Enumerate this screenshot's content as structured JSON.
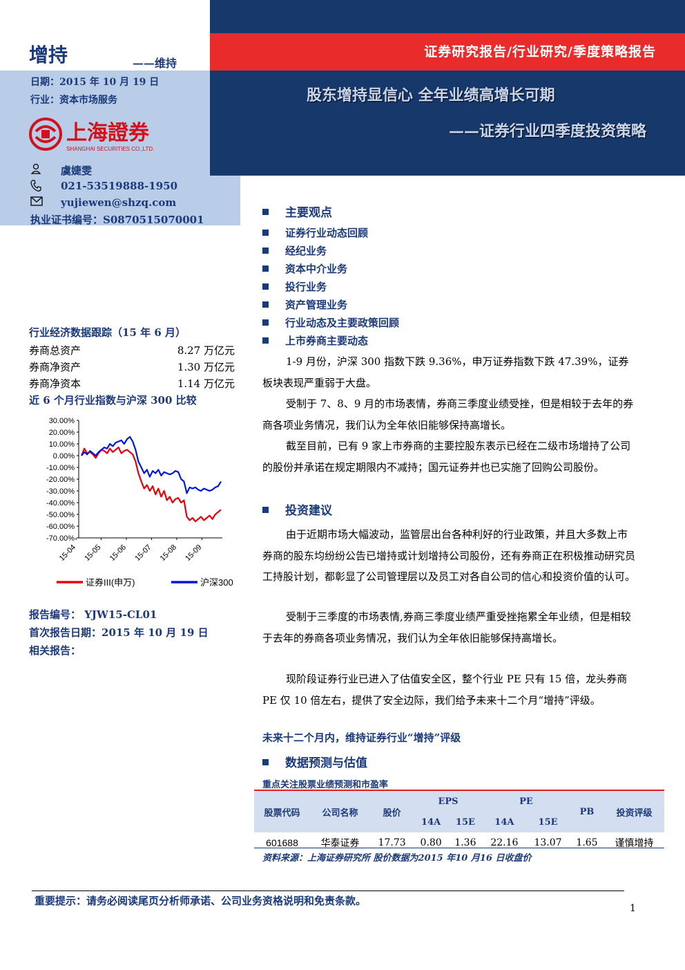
{
  "rating": {
    "main": "增持",
    "previous": "——维持"
  },
  "header": {
    "report_type": "证券研究报告/行业研究/季度策略报告",
    "title": "股东增持显信心 全年业绩高增长可期",
    "subtitle": "——证券行业四季度投资策略"
  },
  "meta": {
    "date": "日期：2015 年 10 月 19 日",
    "industry": "行业：资本市场服务"
  },
  "logo": {
    "cn": "上海證券",
    "en": "SHANGHAI SECURITIES CO.,LTD."
  },
  "analyst": {
    "name": "虞婕雯",
    "phone": "021-53519888-1950",
    "email": "yujiewen@shzq.com",
    "license": "执业证书编号：S0870515070001"
  },
  "outline": {
    "heading": "主要观点",
    "items": [
      "证券行业动态回顾",
      "经纪业务",
      "资本中介业务",
      "投行业务",
      "资产管理业务",
      "行业动态及主要政策回顾",
      "上市券商主要动态"
    ]
  },
  "summary_paragraphs": [
    "1-9 月份，沪深 300 指数下跌 9.36%，申万证券指数下跌 47.39%，证券板块表现严重弱于大盘。",
    "受制于 7、8、9 月的市场表情，券商三季度业绩受挫，但是相较于去年的券商各项业务情况，我们认为全年依旧能够保持高增长。",
    "截至目前，已有 9 家上市券商的主要控股东表示已经在二级市场增持了公司的股份并承诺在规定期限内不减持；国元证券并也已实施了回购公司股份。"
  ],
  "advice": {
    "heading": "投资建议",
    "paragraphs": [
      "由于近期市场大幅波动，监管层出台各种利好的行业政策，并且大多数上市券商的股东均纷纷公告已增持或计划增持公司股份，还有券商正在积极推动研究员工持股计划，都彰显了公司管理层以及员工对各自公司的信心和投资价值的认可。",
      "受制于三季度的市场表情,券商三季度业绩严重受挫拖累全年业绩，但是相较于去年的券商各项业务情况，我们认为全年依旧能够保持高增长。",
      "现阶段证券行业已进入了估值安全区，整个行业 PE 只有 15 倍，龙头券商 PE 仅 10 倍左右，提供了安全边际，我们给予未来十二个月“增持”评级。"
    ],
    "conclusion": "未来十二个月内，维持证券行业“增持”评级"
  },
  "econ": {
    "title": "行业经济数据跟踪（15 年 6 月）",
    "rows": [
      {
        "label": "券商总资产",
        "value": "8.27 万亿元"
      },
      {
        "label": "券商净资产",
        "value": "1.30 万亿元"
      },
      {
        "label": "券商净资本",
        "value": "1.14 万亿元"
      }
    ]
  },
  "chart_data": {
    "type": "line",
    "title": "近 6 个月行业指数与沪深 300 比较",
    "x_ticks": [
      "15-04",
      "15-05",
      "15-06",
      "15-07",
      "15-08",
      "15-09"
    ],
    "y_ticks": [
      "30.00%",
      "20.00%",
      "10.00%",
      "0.00%",
      "-10.00%",
      "-20.00%",
      "-30.00%",
      "-40.00%",
      "-50.00%",
      "-60.00%",
      "-70.00%"
    ],
    "ylim": [
      -70,
      30
    ],
    "legend_position": "bottom",
    "series": [
      {
        "name": "证券III(申万)",
        "color": "#e8000b",
        "values": [
          0,
          6,
          2,
          3,
          1,
          -2,
          2,
          5,
          4,
          2,
          6,
          3,
          5,
          7,
          2,
          4,
          5,
          3,
          1,
          -5,
          -15,
          -22,
          -28,
          -25,
          -30,
          -26,
          -33,
          -28,
          -35,
          -30,
          -38,
          -35,
          -40,
          -37,
          -36,
          -40,
          -38,
          -52,
          -55,
          -53,
          -56,
          -54,
          -52,
          -55,
          -53,
          -51,
          -54,
          -50,
          -48,
          -46
        ]
      },
      {
        "name": "沪深300",
        "color": "#0019d6",
        "values": [
          0,
          3,
          1,
          4,
          2,
          0,
          3,
          5,
          7,
          6,
          10,
          8,
          11,
          12,
          13,
          10,
          14,
          16,
          12,
          5,
          -5,
          -10,
          -15,
          -12,
          -18,
          -13,
          -15,
          -12,
          -17,
          -14,
          -15,
          -16,
          -15,
          -13,
          -14,
          -20,
          -22,
          -32,
          -27,
          -28,
          -27,
          -29,
          -30,
          -28,
          -29,
          -30,
          -29,
          -27,
          -26,
          -22
        ]
      }
    ]
  },
  "report_info": {
    "number": "报告编号：  YJW15-CL01",
    "first_date": "首次报告日期：2015 年 10 月 19 日",
    "related": "相关报告："
  },
  "valuation": {
    "heading": "数据预测与估值",
    "table_title": "重点关注股票业绩预测和市盈率",
    "headers": {
      "code": "股票代码",
      "name": "公司名称",
      "price": "股价",
      "eps": "EPS",
      "pe": "PE",
      "pb": "PB",
      "rating": "投资评级",
      "y1": "14A",
      "y2": "15E"
    },
    "rows": [
      {
        "code": "601688",
        "name": "华泰证券",
        "price": "17.73",
        "eps14": "0.80",
        "eps15": "1.36",
        "pe14": "22.16",
        "pe15": "13.07",
        "pb": "1.65",
        "rating": "谨慎增持"
      }
    ],
    "source": "资料来源：上海证券研究所 股价数据为2015 年10 月16 日收盘价"
  },
  "footer": {
    "note": "重要提示：请务必阅读尾页分析师承诺、公司业务资格说明和免责条款。",
    "page": "1"
  },
  "colors": {
    "navy": "#17386b",
    "red": "#ea2b2b",
    "light_blue": "#b9cde9",
    "text_blue": "#1b3a7a"
  }
}
